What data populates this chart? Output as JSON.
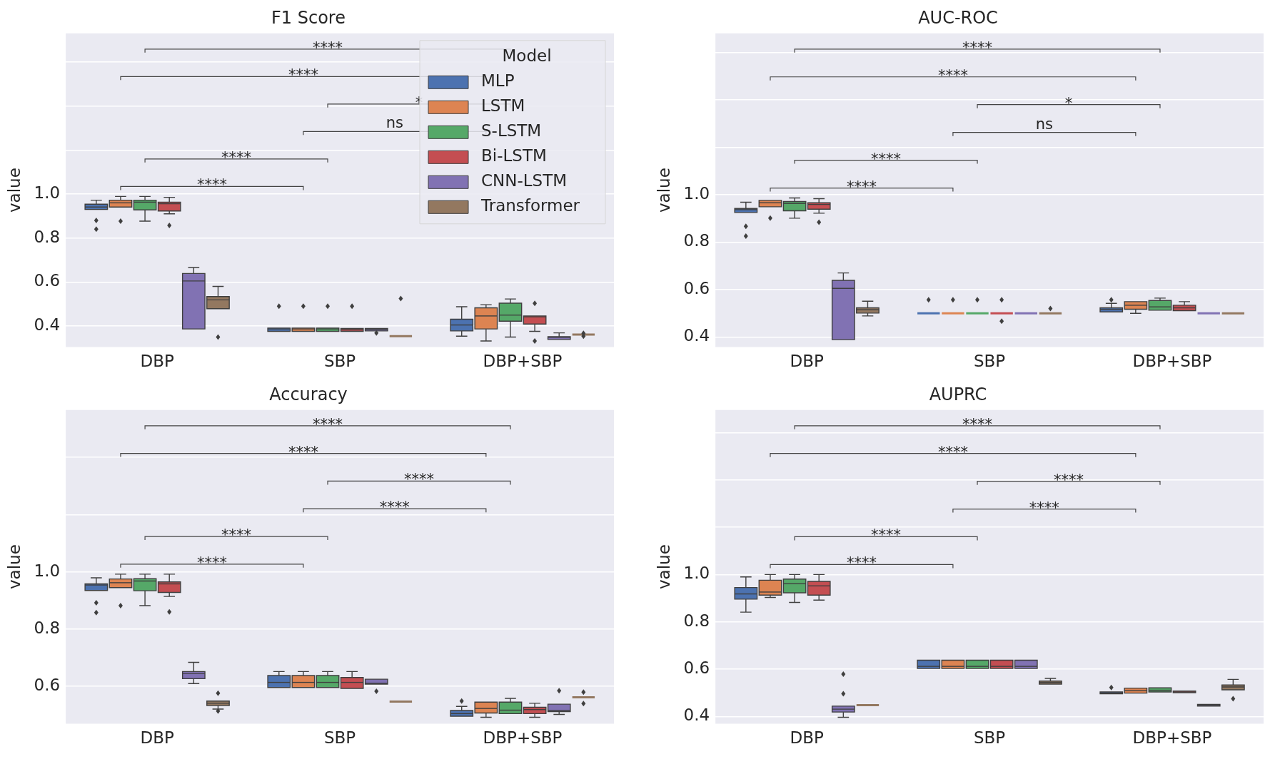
{
  "chart_data": [
    {
      "type": "box",
      "title": "F1 Score",
      "ylabel": "value",
      "categories": [
        "DBP",
        "SBP",
        "DBP+SBP"
      ],
      "ylim": [
        0.305,
        1.73
      ],
      "yticks": [
        0.4,
        0.6,
        0.8,
        {
          "value": 1,
          "label": "1.0"
        },
        {
          "value": 1.2,
          "label": null
        },
        {
          "value": 1.4,
          "label": null
        },
        {
          "value": 1.6,
          "label": null
        }
      ],
      "grid": "y",
      "legend": "top right",
      "legend_title": "Model",
      "annotations": [
        "****",
        "****",
        "ns",
        "*",
        "****",
        "****"
      ],
      "series": [
        {
          "name": "MLP",
          "color": "#4c72b0",
          "boxes": [
            {
              "low": 0.93,
              "q1": 0.93,
              "median": 0.941,
              "q3": 0.954,
              "high": 0.972,
              "outliers": [
                0.88,
                0.84
              ]
            },
            {
              "low": 0.376,
              "q1": 0.376,
              "median": 0.387,
              "q3": 0.391,
              "high": 0.391,
              "outliers": [
                0.49
              ]
            },
            {
              "low": 0.354,
              "q1": 0.378,
              "median": 0.405,
              "q3": 0.431,
              "high": 0.488
            }
          ]
        },
        {
          "name": "LSTM",
          "color": "#dd8452",
          "boxes": [
            {
              "low": 0.941,
              "q1": 0.941,
              "median": 0.96,
              "q3": 0.972,
              "high": 0.989,
              "outliers": [
                0.877
              ]
            },
            {
              "low": 0.376,
              "q1": 0.376,
              "median": 0.387,
              "q3": 0.391,
              "high": 0.391,
              "outliers": [
                0.49
              ]
            },
            {
              "low": 0.332,
              "q1": 0.387,
              "median": 0.446,
              "q3": 0.483,
              "high": 0.497
            }
          ]
        },
        {
          "name": "S-LSTM",
          "color": "#55a868",
          "boxes": [
            {
              "low": 0.877,
              "q1": 0.928,
              "median": 0.963,
              "q3": 0.972,
              "high": 0.989
            },
            {
              "low": 0.376,
              "q1": 0.376,
              "median": 0.387,
              "q3": 0.391,
              "high": 0.391,
              "outliers": [
                0.49
              ]
            },
            {
              "low": 0.35,
              "q1": 0.422,
              "median": 0.45,
              "q3": 0.504,
              "high": 0.523
            }
          ]
        },
        {
          "name": "Bi-LSTM",
          "color": "#c44e52",
          "boxes": [
            {
              "low": 0.91,
              "q1": 0.923,
              "median": 0.956,
              "q3": 0.963,
              "high": 0.985,
              "outliers": [
                0.857
              ]
            },
            {
              "low": 0.376,
              "q1": 0.376,
              "median": 0.383,
              "q3": 0.389,
              "high": 0.389,
              "outliers": [
                0.49
              ]
            },
            {
              "low": 0.376,
              "q1": 0.409,
              "median": 0.442,
              "q3": 0.446,
              "high": 0.446,
              "outliers": [
                0.503,
                0.332
              ]
            }
          ]
        },
        {
          "name": "CNN-LSTM",
          "color": "#8172b3",
          "boxes": [
            {
              "low": 0.387,
              "q1": 0.387,
              "median": 0.605,
              "q3": 0.639,
              "high": 0.666
            },
            {
              "low": 0.378,
              "q1": 0.378,
              "median": 0.385,
              "q3": 0.389,
              "high": 0.389,
              "outliers": [
                0.369
              ]
            },
            {
              "low": 0.339,
              "q1": 0.339,
              "median": 0.349,
              "q3": 0.352,
              "high": 0.369
            }
          ]
        },
        {
          "name": "Transformer",
          "color": "#937860",
          "boxes": [
            {
              "low": 0.477,
              "q1": 0.479,
              "median": 0.519,
              "q3": 0.534,
              "high": 0.58,
              "outliers": [
                0.35
              ]
            },
            {
              "low": 0.354,
              "q1": 0.354,
              "median": 0.354,
              "q3": 0.354,
              "high": 0.354,
              "outliers": [
                0.525
              ]
            },
            {
              "low": 0.361,
              "q1": 0.361,
              "median": 0.361,
              "q3": 0.361,
              "high": 0.361,
              "outliers": [
                0.367,
                0.354
              ]
            }
          ]
        }
      ]
    },
    {
      "type": "box",
      "title": "AUC-ROC",
      "ylabel": "value",
      "categories": [
        "DBP",
        "SBP",
        "DBP+SBP"
      ],
      "ylim": [
        0.358,
        1.68
      ],
      "yticks": [
        0.4,
        0.6,
        0.8,
        {
          "value": 1,
          "label": "1.0"
        },
        {
          "value": 1.2,
          "label": null
        },
        {
          "value": 1.4,
          "label": null
        },
        {
          "value": 1.6,
          "label": null
        }
      ],
      "grid": "y",
      "annotations": [
        "****",
        "****",
        "ns",
        "*",
        "****",
        "****"
      ],
      "series": [
        {
          "color": "#4c72b0",
          "boxes": [
            {
              "low": 0.925,
              "q1": 0.925,
              "median": 0.937,
              "q3": 0.942,
              "high": 0.968,
              "outliers": [
                0.867,
                0.825
              ]
            },
            {
              "low": 0.5,
              "q1": 0.5,
              "median": 0.5,
              "q3": 0.5,
              "high": 0.5,
              "outliers": [
                0.557
              ]
            },
            {
              "low": 0.506,
              "q1": 0.506,
              "median": 0.517,
              "q3": 0.523,
              "high": 0.542,
              "outliers": [
                0.557
              ]
            }
          ]
        },
        {
          "color": "#dd8452",
          "boxes": [
            {
              "low": 0.949,
              "q1": 0.949,
              "median": 0.966,
              "q3": 0.976,
              "high": 0.976,
              "outliers": [
                0.901
              ]
            },
            {
              "low": 0.5,
              "q1": 0.5,
              "median": 0.5,
              "q3": 0.5,
              "high": 0.5,
              "outliers": [
                0.557
              ]
            },
            {
              "low": 0.5,
              "q1": 0.517,
              "median": 0.534,
              "q3": 0.549,
              "high": 0.549
            }
          ]
        },
        {
          "color": "#55a868",
          "boxes": [
            {
              "low": 0.901,
              "q1": 0.932,
              "median": 0.963,
              "q3": 0.971,
              "high": 0.986
            },
            {
              "low": 0.5,
              "q1": 0.5,
              "median": 0.5,
              "q3": 0.5,
              "high": 0.5,
              "outliers": [
                0.557
              ]
            },
            {
              "low": 0.513,
              "q1": 0.513,
              "median": 0.527,
              "q3": 0.554,
              "high": 0.564
            }
          ]
        },
        {
          "color": "#c44e52",
          "boxes": [
            {
              "low": 0.922,
              "q1": 0.939,
              "median": 0.959,
              "q3": 0.966,
              "high": 0.983,
              "outliers": [
                0.884
              ]
            },
            {
              "low": 0.5,
              "q1": 0.5,
              "median": 0.5,
              "q3": 0.5,
              "high": 0.5,
              "outliers": [
                0.557,
                0.467
              ]
            },
            {
              "low": 0.511,
              "q1": 0.511,
              "median": 0.523,
              "q3": 0.534,
              "high": 0.549
            }
          ]
        },
        {
          "color": "#8172b3",
          "boxes": [
            {
              "low": 0.389,
              "q1": 0.389,
              "median": 0.605,
              "q3": 0.639,
              "high": 0.67
            },
            {
              "low": 0.5,
              "q1": 0.5,
              "median": 0.5,
              "q3": 0.5,
              "high": 0.5
            },
            {
              "low": 0.5,
              "q1": 0.5,
              "median": 0.5,
              "q3": 0.5,
              "high": 0.5
            }
          ]
        },
        {
          "color": "#937860",
          "boxes": [
            {
              "low": 0.489,
              "q1": 0.501,
              "median": 0.515,
              "q3": 0.523,
              "high": 0.551
            },
            {
              "low": 0.5,
              "q1": 0.5,
              "median": 0.5,
              "q3": 0.5,
              "high": 0.5,
              "outliers": [
                0.52
              ]
            },
            {
              "low": 0.5,
              "q1": 0.5,
              "median": 0.5,
              "q3": 0.5,
              "high": 0.5
            }
          ]
        }
      ]
    },
    {
      "type": "box",
      "title": "Accuracy",
      "ylabel": "value",
      "categories": [
        "DBP",
        "SBP",
        "DBP+SBP"
      ],
      "ylim": [
        0.47,
        1.565
      ],
      "yticks": [
        0.6,
        0.8,
        {
          "value": 1,
          "label": "1.0"
        },
        {
          "value": 1.2,
          "label": null
        },
        {
          "value": 1.4,
          "label": null
        }
      ],
      "grid": "y",
      "annotations": [
        "****",
        "****",
        "****",
        "****",
        "****",
        "****"
      ],
      "series": [
        {
          "color": "#4c72b0",
          "boxes": [
            {
              "low": 0.935,
              "q1": 0.935,
              "median": 0.954,
              "q3": 0.958,
              "high": 0.979,
              "outliers": [
                0.892,
                0.858
              ]
            },
            {
              "low": 0.596,
              "q1": 0.596,
              "median": 0.614,
              "q3": 0.638,
              "high": 0.652
            },
            {
              "low": 0.496,
              "q1": 0.496,
              "median": 0.505,
              "q3": 0.516,
              "high": 0.53,
              "outliers": [
                0.549
              ]
            }
          ]
        },
        {
          "color": "#dd8452",
          "boxes": [
            {
              "low": 0.945,
              "q1": 0.945,
              "median": 0.962,
              "q3": 0.975,
              "high": 0.992,
              "outliers": [
                0.882
              ]
            },
            {
              "low": 0.596,
              "q1": 0.596,
              "median": 0.614,
              "q3": 0.638,
              "high": 0.652
            },
            {
              "low": 0.492,
              "q1": 0.507,
              "median": 0.523,
              "q3": 0.545,
              "high": 0.545
            }
          ]
        },
        {
          "color": "#55a868",
          "boxes": [
            {
              "low": 0.882,
              "q1": 0.934,
              "median": 0.968,
              "q3": 0.976,
              "high": 0.992
            },
            {
              "low": 0.596,
              "q1": 0.596,
              "median": 0.614,
              "q3": 0.638,
              "high": 0.652
            },
            {
              "low": 0.505,
              "q1": 0.505,
              "median": 0.517,
              "q3": 0.545,
              "high": 0.558
            }
          ]
        },
        {
          "color": "#c44e52",
          "boxes": [
            {
              "low": 0.914,
              "q1": 0.928,
              "median": 0.958,
              "q3": 0.965,
              "high": 0.992,
              "outliers": [
                0.86
              ]
            },
            {
              "low": 0.593,
              "q1": 0.593,
              "median": 0.614,
              "q3": 0.631,
              "high": 0.652
            },
            {
              "low": 0.492,
              "q1": 0.505,
              "median": 0.519,
              "q3": 0.527,
              "high": 0.541
            }
          ]
        },
        {
          "color": "#8172b3",
          "boxes": [
            {
              "low": 0.61,
              "q1": 0.627,
              "median": 0.645,
              "q3": 0.652,
              "high": 0.684
            },
            {
              "low": 0.608,
              "q1": 0.608,
              "median": 0.611,
              "q3": 0.625,
              "high": 0.625,
              "outliers": [
                0.583
              ]
            },
            {
              "low": 0.502,
              "q1": 0.512,
              "median": 0.516,
              "q3": 0.538,
              "high": 0.538,
              "outliers": [
                0.585
              ]
            }
          ]
        },
        {
          "color": "#937860",
          "boxes": [
            {
              "low": 0.521,
              "q1": 0.533,
              "median": 0.541,
              "q3": 0.549,
              "high": 0.549,
              "outliers": [
                0.576,
                0.514
              ]
            },
            {
              "low": 0.547,
              "q1": 0.547,
              "median": 0.547,
              "q3": 0.547,
              "high": 0.547
            },
            {
              "low": 0.562,
              "q1": 0.562,
              "median": 0.562,
              "q3": 0.562,
              "high": 0.562,
              "outliers": [
                0.58,
                0.54
              ]
            }
          ]
        }
      ]
    },
    {
      "type": "box",
      "title": "AUPRC",
      "ylabel": "value",
      "categories": [
        "DBP",
        "SBP",
        "DBP+SBP"
      ],
      "ylim": [
        0.37,
        1.695
      ],
      "yticks": [
        0.4,
        0.6,
        0.8,
        {
          "value": 1,
          "label": "1.0"
        },
        {
          "value": 1.2,
          "label": null
        },
        {
          "value": 1.4,
          "label": null
        },
        {
          "value": 1.6,
          "label": null
        }
      ],
      "grid": "y",
      "annotations": [
        "****",
        "****",
        "****",
        "****",
        "****",
        "****"
      ],
      "series": [
        {
          "color": "#4c72b0",
          "boxes": [
            {
              "low": 0.841,
              "q1": 0.896,
              "median": 0.918,
              "q3": 0.945,
              "high": 0.99
            },
            {
              "low": 0.603,
              "q1": 0.603,
              "median": 0.612,
              "q3": 0.638,
              "high": 0.638
            },
            {
              "low": 0.496,
              "q1": 0.496,
              "median": 0.499,
              "q3": 0.504,
              "high": 0.504,
              "outliers": [
                0.523
              ]
            }
          ]
        },
        {
          "color": "#dd8452",
          "boxes": [
            {
              "low": 0.903,
              "q1": 0.913,
              "median": 0.926,
              "q3": 0.976,
              "high": 1.0
            },
            {
              "low": 0.603,
              "q1": 0.603,
              "median": 0.612,
              "q3": 0.638,
              "high": 0.638
            },
            {
              "low": 0.499,
              "q1": 0.499,
              "median": 0.509,
              "q3": 0.52,
              "high": 0.52
            }
          ]
        },
        {
          "color": "#55a868",
          "boxes": [
            {
              "low": 0.882,
              "q1": 0.923,
              "median": 0.961,
              "q3": 0.981,
              "high": 1.0
            },
            {
              "low": 0.603,
              "q1": 0.603,
              "median": 0.612,
              "q3": 0.638,
              "high": 0.638
            },
            {
              "low": 0.504,
              "q1": 0.504,
              "median": 0.511,
              "q3": 0.521,
              "high": 0.521
            }
          ]
        },
        {
          "color": "#c44e52",
          "boxes": [
            {
              "low": 0.892,
              "q1": 0.913,
              "median": 0.952,
              "q3": 0.971,
              "high": 1.0
            },
            {
              "low": 0.603,
              "q1": 0.603,
              "median": 0.612,
              "q3": 0.638,
              "high": 0.638
            },
            {
              "low": 0.501,
              "q1": 0.501,
              "median": 0.504,
              "q3": 0.508,
              "high": 0.508
            }
          ]
        },
        {
          "color": "#8172b3",
          "boxes": [
            {
              "low": 0.397,
              "q1": 0.419,
              "median": 0.431,
              "q3": 0.444,
              "high": 0.444,
              "outliers": [
                0.579,
                0.496
              ]
            },
            {
              "low": 0.603,
              "q1": 0.603,
              "median": 0.612,
              "q3": 0.638,
              "high": 0.638
            },
            {
              "low": 0.444,
              "q1": 0.444,
              "median": 0.448,
              "q3": 0.451,
              "high": 0.451
            }
          ]
        },
        {
          "color": "#937860",
          "boxes": [
            {
              "low": 0.448,
              "q1": 0.448,
              "median": 0.448,
              "q3": 0.448,
              "high": 0.448
            },
            {
              "low": 0.537,
              "q1": 0.537,
              "median": 0.544,
              "q3": 0.55,
              "high": 0.561
            },
            {
              "low": 0.513,
              "q1": 0.513,
              "median": 0.525,
              "q3": 0.533,
              "high": 0.557,
              "outliers": [
                0.475
              ]
            }
          ]
        }
      ]
    }
  ]
}
